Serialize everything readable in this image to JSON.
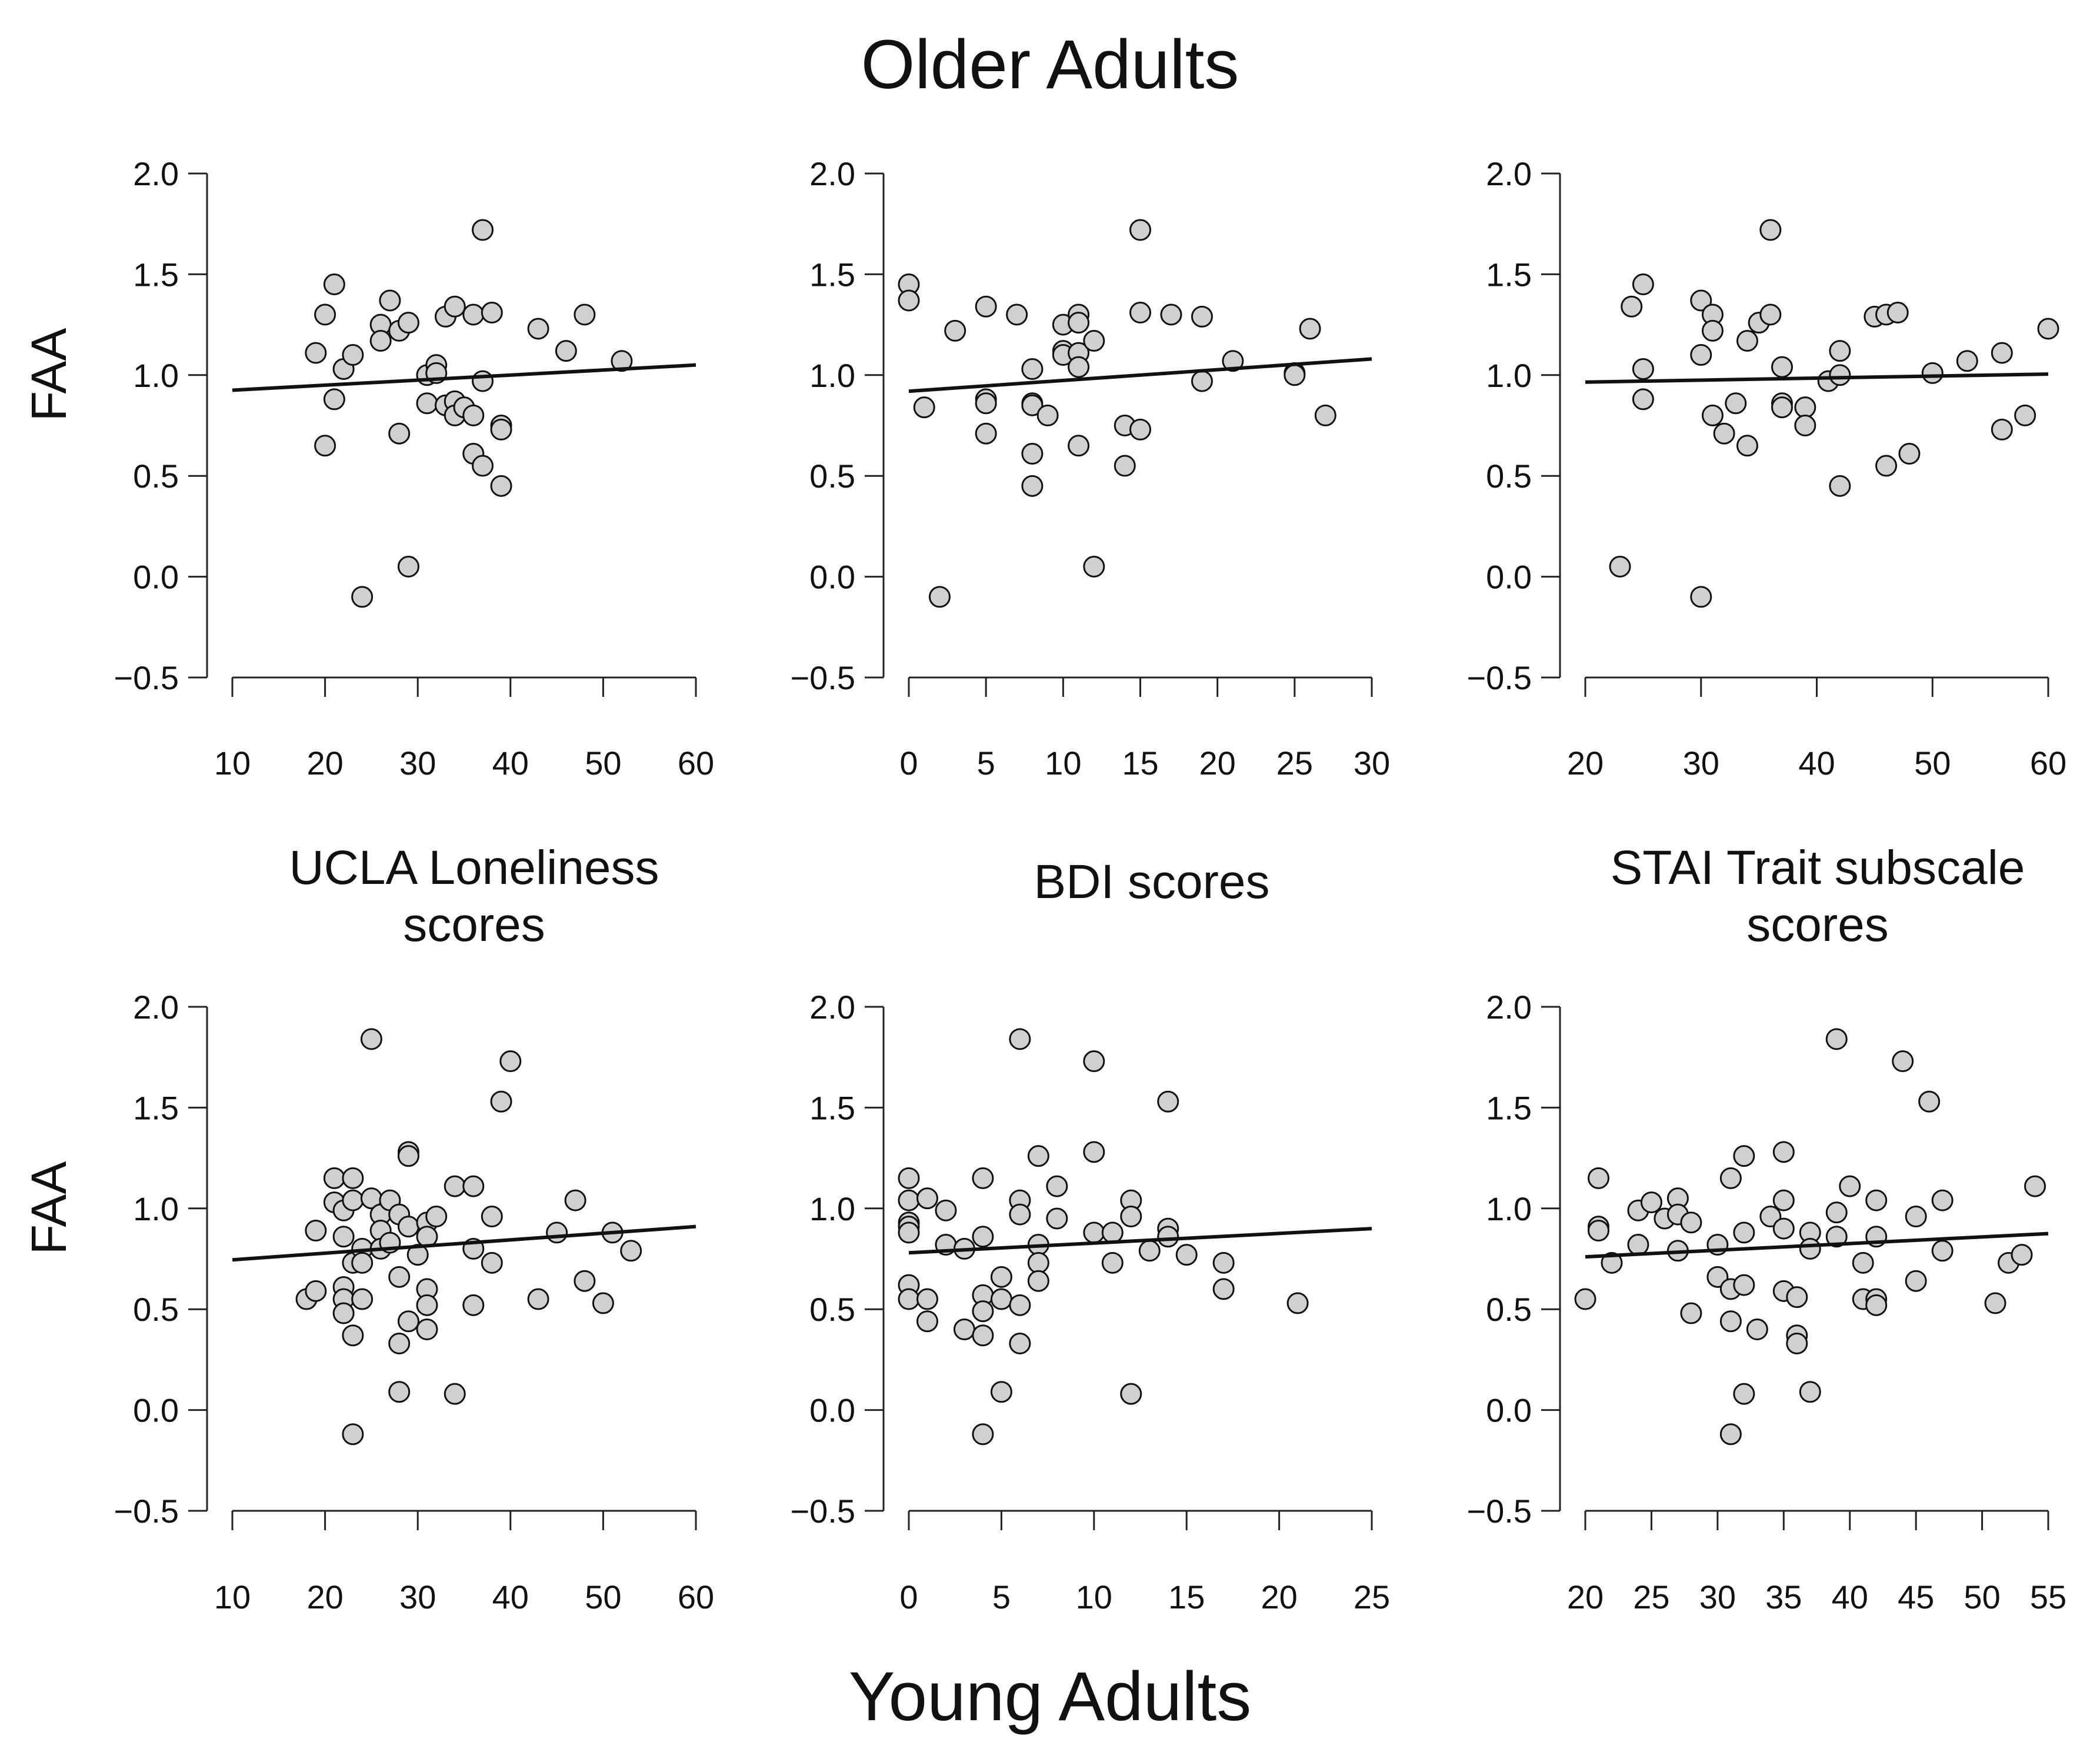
{
  "figure": {
    "top_title": "Older Adults",
    "bottom_title": "Young Adults",
    "column_titles": [
      [
        "UCLA Loneliness",
        "scores"
      ],
      [
        "BDI scores"
      ],
      [
        "STAI Trait subscale",
        "scores"
      ]
    ]
  },
  "chart_data": [
    {
      "type": "scatter",
      "group": "Older Adults",
      "measure": "UCLA Loneliness scores",
      "ylabel": "FAA",
      "xlim": [
        10,
        60
      ],
      "ylim": [
        -0.5,
        2.0
      ],
      "xticks": [
        "10",
        "20",
        "30",
        "40",
        "50",
        "60"
      ],
      "yticks": [
        "−0.5",
        "0.0",
        "0.5",
        "1.0",
        "1.5",
        "2.0"
      ],
      "points": [
        [
          19,
          1.11
        ],
        [
          20,
          1.3
        ],
        [
          20,
          0.65
        ],
        [
          21,
          1.45
        ],
        [
          21,
          0.88
        ],
        [
          22,
          1.03
        ],
        [
          23,
          1.1
        ],
        [
          24,
          -0.1
        ],
        [
          26,
          1.25
        ],
        [
          26,
          1.17
        ],
        [
          27,
          1.37
        ],
        [
          28,
          1.22
        ],
        [
          28,
          0.71
        ],
        [
          29,
          1.26
        ],
        [
          29,
          0.05
        ],
        [
          31,
          1.0
        ],
        [
          31,
          0.86
        ],
        [
          32,
          1.05
        ],
        [
          32,
          1.01
        ],
        [
          33,
          0.85
        ],
        [
          33,
          1.29
        ],
        [
          34,
          1.34
        ],
        [
          34,
          0.87
        ],
        [
          34,
          0.8
        ],
        [
          35,
          0.84
        ],
        [
          36,
          1.3
        ],
        [
          36,
          0.8
        ],
        [
          36,
          0.61
        ],
        [
          37,
          1.72
        ],
        [
          37,
          0.97
        ],
        [
          37,
          0.55
        ],
        [
          38,
          1.31
        ],
        [
          39,
          0.75
        ],
        [
          39,
          0.73
        ],
        [
          39,
          0.45
        ],
        [
          43,
          1.23
        ],
        [
          46,
          1.12
        ],
        [
          48,
          1.3
        ],
        [
          52,
          1.07
        ]
      ],
      "fit_line": {
        "x": [
          10,
          60
        ],
        "y": [
          0.925,
          1.05
        ]
      }
    },
    {
      "type": "scatter",
      "group": "Older Adults",
      "measure": "BDI scores",
      "ylabel": "",
      "xlim": [
        0,
        30
      ],
      "ylim": [
        -0.5,
        2.0
      ],
      "xticks": [
        "0",
        "5",
        "10",
        "15",
        "20",
        "25",
        "30"
      ],
      "yticks": [
        "−0.5",
        "0.0",
        "0.5",
        "1.0",
        "1.5",
        "2.0"
      ],
      "points": [
        [
          0,
          1.45
        ],
        [
          0,
          1.37
        ],
        [
          1,
          0.84
        ],
        [
          2,
          -0.1
        ],
        [
          3,
          1.22
        ],
        [
          5,
          1.34
        ],
        [
          5,
          0.88
        ],
        [
          5,
          0.86
        ],
        [
          5,
          0.71
        ],
        [
          7,
          1.3
        ],
        [
          8,
          1.03
        ],
        [
          8,
          0.86
        ],
        [
          8,
          0.85
        ],
        [
          8,
          0.61
        ],
        [
          8,
          0.45
        ],
        [
          9,
          0.8
        ],
        [
          10,
          1.25
        ],
        [
          10,
          1.12
        ],
        [
          10,
          1.1
        ],
        [
          11,
          1.3
        ],
        [
          11,
          1.26
        ],
        [
          11,
          1.11
        ],
        [
          11,
          1.04
        ],
        [
          11,
          0.65
        ],
        [
          12,
          1.17
        ],
        [
          12,
          0.05
        ],
        [
          14,
          0.75
        ],
        [
          14,
          0.55
        ],
        [
          15,
          1.72
        ],
        [
          15,
          1.31
        ],
        [
          15,
          0.73
        ],
        [
          17,
          1.3
        ],
        [
          19,
          1.29
        ],
        [
          19,
          0.97
        ],
        [
          21,
          1.07
        ],
        [
          25,
          1.01
        ],
        [
          25,
          1.0
        ],
        [
          26,
          1.23
        ],
        [
          27,
          0.8
        ]
      ],
      "fit_line": {
        "x": [
          0,
          30
        ],
        "y": [
          0.92,
          1.08
        ]
      }
    },
    {
      "type": "scatter",
      "group": "Older Adults",
      "measure": "STAI Trait subscale scores",
      "ylabel": "",
      "xlim": [
        20,
        60
      ],
      "ylim": [
        -0.5,
        2.0
      ],
      "xticks": [
        "20",
        "30",
        "40",
        "50",
        "60"
      ],
      "yticks": [
        "−0.5",
        "0.0",
        "0.5",
        "1.0",
        "1.5",
        "2.0"
      ],
      "points": [
        [
          23,
          0.05
        ],
        [
          24,
          1.34
        ],
        [
          25,
          1.45
        ],
        [
          25,
          1.03
        ],
        [
          25,
          0.88
        ],
        [
          30,
          1.37
        ],
        [
          30,
          1.1
        ],
        [
          30,
          -0.1
        ],
        [
          31,
          1.3
        ],
        [
          31,
          1.22
        ],
        [
          31,
          0.8
        ],
        [
          32,
          0.71
        ],
        [
          33,
          0.86
        ],
        [
          34,
          1.17
        ],
        [
          34,
          0.65
        ],
        [
          35,
          1.26
        ],
        [
          36,
          1.72
        ],
        [
          36,
          1.3
        ],
        [
          37,
          1.04
        ],
        [
          37,
          0.86
        ],
        [
          37,
          0.84
        ],
        [
          39,
          0.84
        ],
        [
          39,
          0.75
        ],
        [
          41,
          0.97
        ],
        [
          42,
          1.12
        ],
        [
          42,
          1.0
        ],
        [
          42,
          0.45
        ],
        [
          45,
          1.29
        ],
        [
          46,
          1.3
        ],
        [
          46,
          0.55
        ],
        [
          47,
          1.31
        ],
        [
          48,
          0.61
        ],
        [
          50,
          1.01
        ],
        [
          53,
          1.07
        ],
        [
          56,
          1.11
        ],
        [
          56,
          0.73
        ],
        [
          58,
          0.8
        ],
        [
          60,
          1.23
        ]
      ],
      "fit_line": {
        "x": [
          20,
          60
        ],
        "y": [
          0.965,
          1.005
        ]
      }
    },
    {
      "type": "scatter",
      "group": "Young Adults",
      "measure": "UCLA Loneliness scores",
      "ylabel": "FAA",
      "xlim": [
        10,
        60
      ],
      "ylim": [
        -0.5,
        2.0
      ],
      "xticks": [
        "10",
        "20",
        "30",
        "40",
        "50",
        "60"
      ],
      "yticks": [
        "−0.5",
        "0.0",
        "0.5",
        "1.0",
        "1.5",
        "2.0"
      ],
      "points": [
        [
          18,
          0.55
        ],
        [
          19,
          0.89
        ],
        [
          19,
          0.59
        ],
        [
          21,
          1.15
        ],
        [
          21,
          1.03
        ],
        [
          22,
          0.99
        ],
        [
          22,
          0.86
        ],
        [
          22,
          0.61
        ],
        [
          22,
          0.55
        ],
        [
          22,
          0.48
        ],
        [
          23,
          1.15
        ],
        [
          23,
          1.04
        ],
        [
          23,
          0.73
        ],
        [
          23,
          0.37
        ],
        [
          23,
          -0.12
        ],
        [
          24,
          0.8
        ],
        [
          24,
          0.73
        ],
        [
          24,
          0.55
        ],
        [
          25,
          1.84
        ],
        [
          25,
          1.05
        ],
        [
          26,
          0.97
        ],
        [
          26,
          0.89
        ],
        [
          26,
          0.8
        ],
        [
          27,
          1.04
        ],
        [
          27,
          0.83
        ],
        [
          28,
          0.97
        ],
        [
          28,
          0.66
        ],
        [
          28,
          0.33
        ],
        [
          28,
          0.09
        ],
        [
          29,
          1.28
        ],
        [
          29,
          1.26
        ],
        [
          29,
          0.91
        ],
        [
          29,
          0.44
        ],
        [
          30,
          0.77
        ],
        [
          31,
          0.93
        ],
        [
          31,
          0.86
        ],
        [
          31,
          0.6
        ],
        [
          31,
          0.52
        ],
        [
          31,
          0.4
        ],
        [
          32,
          0.96
        ],
        [
          34,
          1.11
        ],
        [
          34,
          0.08
        ],
        [
          36,
          1.11
        ],
        [
          36,
          0.8
        ],
        [
          36,
          0.52
        ],
        [
          38,
          0.96
        ],
        [
          38,
          0.73
        ],
        [
          39,
          1.53
        ],
        [
          40,
          1.73
        ],
        [
          43,
          0.55
        ],
        [
          45,
          0.88
        ],
        [
          47,
          1.04
        ],
        [
          48,
          0.64
        ],
        [
          50,
          0.53
        ],
        [
          51,
          0.88
        ],
        [
          53,
          0.79
        ]
      ],
      "fit_line": {
        "x": [
          10,
          60
        ],
        "y": [
          0.745,
          0.91
        ]
      }
    },
    {
      "type": "scatter",
      "group": "Young Adults",
      "measure": "BDI scores",
      "ylabel": "",
      "xlim": [
        0,
        25
      ],
      "ylim": [
        -0.5,
        2.0
      ],
      "xticks": [
        "0",
        "5",
        "10",
        "15",
        "20",
        "25"
      ],
      "yticks": [
        "−0.5",
        "0.0",
        "0.5",
        "1.0",
        "1.5",
        "2.0"
      ],
      "points": [
        [
          0,
          1.15
        ],
        [
          0,
          1.04
        ],
        [
          0,
          0.93
        ],
        [
          0,
          0.91
        ],
        [
          0,
          0.88
        ],
        [
          0,
          0.62
        ],
        [
          0,
          0.55
        ],
        [
          1,
          1.05
        ],
        [
          1,
          0.55
        ],
        [
          1,
          0.44
        ],
        [
          2,
          0.99
        ],
        [
          2,
          0.82
        ],
        [
          3,
          0.8
        ],
        [
          3,
          0.4
        ],
        [
          4,
          1.15
        ],
        [
          4,
          0.86
        ],
        [
          4,
          0.57
        ],
        [
          4,
          0.49
        ],
        [
          4,
          0.37
        ],
        [
          4,
          -0.12
        ],
        [
          5,
          0.66
        ],
        [
          5,
          0.55
        ],
        [
          5,
          0.09
        ],
        [
          6,
          1.84
        ],
        [
          6,
          1.04
        ],
        [
          6,
          0.97
        ],
        [
          6,
          0.52
        ],
        [
          6,
          0.33
        ],
        [
          7,
          1.26
        ],
        [
          7,
          0.82
        ],
        [
          7,
          0.73
        ],
        [
          7,
          0.64
        ],
        [
          8,
          1.11
        ],
        [
          8,
          0.95
        ],
        [
          10,
          1.73
        ],
        [
          10,
          1.28
        ],
        [
          10,
          0.88
        ],
        [
          11,
          0.88
        ],
        [
          11,
          0.73
        ],
        [
          12,
          1.04
        ],
        [
          12,
          0.96
        ],
        [
          12,
          0.08
        ],
        [
          13,
          0.79
        ],
        [
          14,
          1.53
        ],
        [
          14,
          0.9
        ],
        [
          14,
          0.86
        ],
        [
          15,
          0.77
        ],
        [
          17,
          0.73
        ],
        [
          17,
          0.6
        ],
        [
          21,
          0.53
        ]
      ],
      "fit_line": {
        "x": [
          0,
          25
        ],
        "y": [
          0.78,
          0.9
        ]
      }
    },
    {
      "type": "scatter",
      "group": "Young Adults",
      "measure": "STAI Trait subscale scores",
      "ylabel": "",
      "xlim": [
        20,
        55
      ],
      "ylim": [
        -0.5,
        2.0
      ],
      "xticks": [
        "20",
        "25",
        "30",
        "35",
        "40",
        "45",
        "50",
        "55"
      ],
      "yticks": [
        "−0.5",
        "0.0",
        "0.5",
        "1.0",
        "1.5",
        "2.0"
      ],
      "points": [
        [
          20,
          0.55
        ],
        [
          21,
          1.15
        ],
        [
          21,
          0.91
        ],
        [
          21,
          0.89
        ],
        [
          22,
          0.73
        ],
        [
          24,
          0.99
        ],
        [
          24,
          0.82
        ],
        [
          25,
          1.03
        ],
        [
          26,
          0.95
        ],
        [
          27,
          1.05
        ],
        [
          27,
          0.97
        ],
        [
          27,
          0.79
        ],
        [
          28,
          0.93
        ],
        [
          28,
          0.48
        ],
        [
          30,
          0.82
        ],
        [
          30,
          0.66
        ],
        [
          31,
          1.15
        ],
        [
          31,
          0.6
        ],
        [
          31,
          0.44
        ],
        [
          31,
          -0.12
        ],
        [
          32,
          1.26
        ],
        [
          32,
          0.88
        ],
        [
          32,
          0.62
        ],
        [
          32,
          0.08
        ],
        [
          33,
          0.4
        ],
        [
          34,
          0.96
        ],
        [
          35,
          1.28
        ],
        [
          35,
          1.04
        ],
        [
          35,
          0.9
        ],
        [
          35,
          0.59
        ],
        [
          36,
          0.56
        ],
        [
          36,
          0.37
        ],
        [
          36,
          0.33
        ],
        [
          37,
          0.88
        ],
        [
          37,
          0.8
        ],
        [
          37,
          0.09
        ],
        [
          39,
          1.84
        ],
        [
          39,
          0.98
        ],
        [
          39,
          0.86
        ],
        [
          40,
          1.11
        ],
        [
          41,
          0.73
        ],
        [
          41,
          0.55
        ],
        [
          42,
          1.04
        ],
        [
          42,
          0.86
        ],
        [
          42,
          0.55
        ],
        [
          42,
          0.52
        ],
        [
          44,
          1.73
        ],
        [
          45,
          0.96
        ],
        [
          45,
          0.64
        ],
        [
          46,
          1.53
        ],
        [
          47,
          1.04
        ],
        [
          47,
          0.79
        ],
        [
          51,
          0.53
        ],
        [
          52,
          0.73
        ],
        [
          53,
          0.77
        ],
        [
          54,
          1.11
        ]
      ],
      "fit_line": {
        "x": [
          20,
          55
        ],
        "y": [
          0.76,
          0.875
        ]
      }
    }
  ]
}
